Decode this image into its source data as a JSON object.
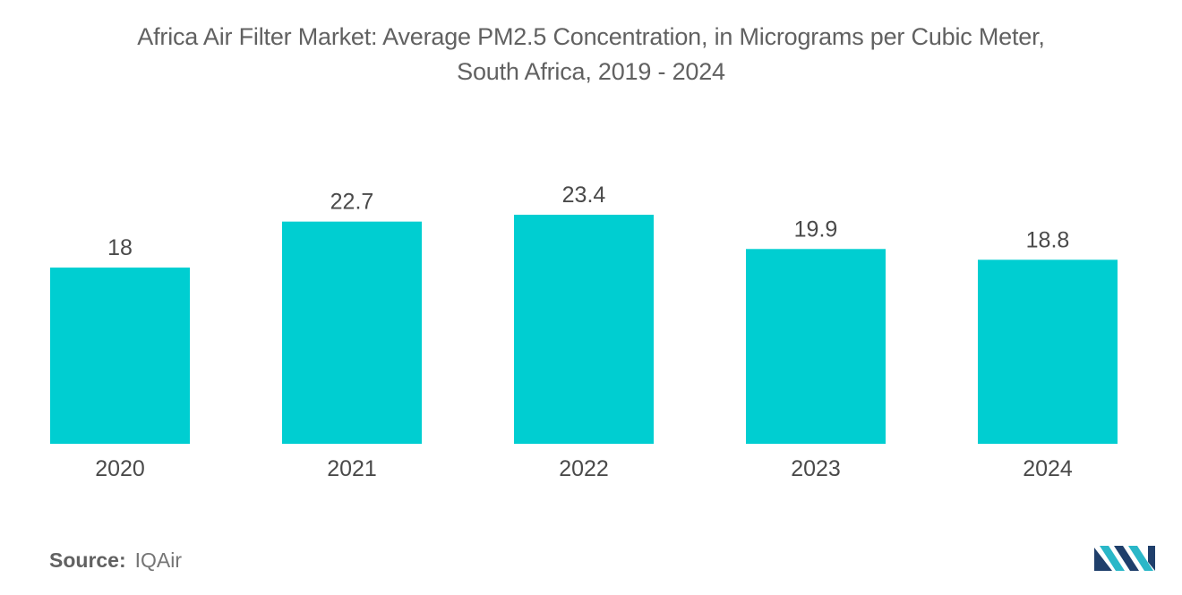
{
  "title_lines": [
    "Africa Air Filter Market: Average PM2.5 Concentration, in Micrograms per Cubic Meter,",
    "South Africa, 2019 - 2024"
  ],
  "source": {
    "label": "Source:",
    "value": "IQAir"
  },
  "colors": {
    "bar": "#00CED1",
    "text": "#616161",
    "logo_dark": "#1f3f6b",
    "logo_light": "#2ab7c8"
  },
  "logo_icon": "mordor-intelligence-logo-icon",
  "chart_data": {
    "type": "bar",
    "categories": [
      "2020",
      "2021",
      "2022",
      "2023",
      "2024"
    ],
    "values": [
      18,
      22.7,
      23.4,
      19.9,
      18.8
    ],
    "value_labels": [
      "18",
      "22.7",
      "23.4",
      "19.9",
      "18.8"
    ],
    "title": "Africa Air Filter Market: Average PM2.5 Concentration, in Micrograms per Cubic Meter, South Africa, 2019 - 2024",
    "xlabel": "",
    "ylabel": "",
    "ylim": [
      0,
      23.4
    ],
    "grid": false,
    "legend": "none"
  }
}
